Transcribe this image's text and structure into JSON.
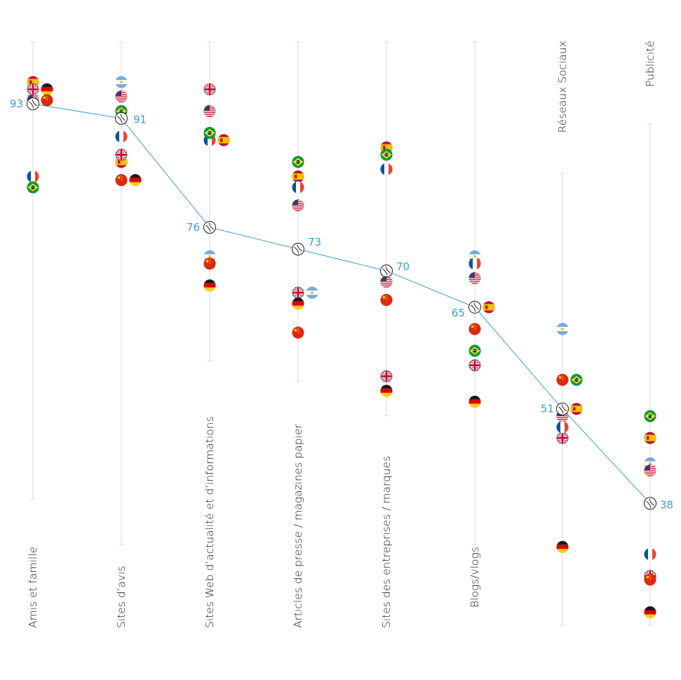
{
  "chart_data": {
    "type": "scatter",
    "title": "",
    "xlabel": "",
    "ylabel": "",
    "ylim": [
      30,
      100
    ],
    "categories": [
      "Amis et famille",
      "Sites d’avis",
      "Sites Web d’actualité et d’informations",
      "Articles de presse / magazines papier",
      "Sites des entreprises / marques",
      "Blogs/vlogs",
      "Réseaux Sociaux",
      "Publicité"
    ],
    "average": {
      "values": [
        93,
        91,
        76,
        73,
        70,
        65,
        51,
        38
      ],
      "labels": [
        "93",
        "91",
        "76",
        "73",
        "70",
        "65",
        "51",
        "38"
      ]
    },
    "countries": [
      {
        "id": "spain",
        "values": [
          96,
          85,
          88,
          83,
          87,
          65,
          51,
          47
        ]
      },
      {
        "id": "argentina",
        "values": [
          94.5,
          96,
          72,
          67,
          69,
          72,
          62,
          43.5
        ]
      },
      {
        "id": "usa",
        "values": [
          93.5,
          94,
          92,
          79,
          68.5,
          69,
          50,
          42.5
        ]
      },
      {
        "id": "uk",
        "values": [
          95,
          86,
          95,
          67,
          55.5,
          57,
          47,
          28
        ]
      },
      {
        "id": "germany",
        "values": [
          95,
          82.5,
          68,
          65.5,
          53.5,
          52,
          32,
          23
        ]
      },
      {
        "id": "china",
        "values": [
          93.5,
          82.5,
          71,
          61.5,
          66,
          62,
          55,
          27.5
        ]
      },
      {
        "id": "france",
        "values": [
          83,
          88.5,
          88,
          81.5,
          84,
          71,
          48.5,
          31
        ]
      },
      {
        "id": "brazil",
        "values": [
          81.5,
          92,
          89,
          85,
          86,
          59,
          55,
          50
        ]
      }
    ],
    "colors": {
      "average_line": "#3a9fd6",
      "axis_line": "#d9d9d9"
    }
  }
}
